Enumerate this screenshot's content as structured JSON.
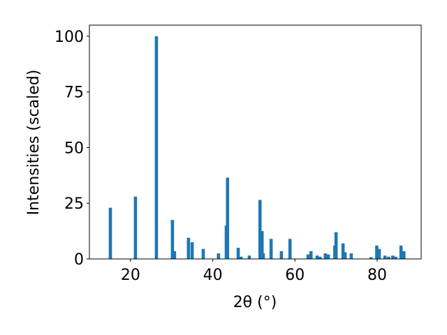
{
  "chart_data": {
    "type": "bar",
    "xlabel": "2θ (°)",
    "ylabel": "Intensities (scaled)",
    "color": "#1f77b4",
    "x": [
      15.1,
      21.2,
      26.3,
      30.2,
      30.7,
      34.1,
      35.0,
      37.7,
      41.4,
      43.3,
      43.6,
      46.2,
      46.9,
      48.9,
      51.5,
      52.0,
      52.3,
      54.2,
      56.7,
      58.8,
      63.2,
      63.9,
      65.4,
      66.1,
      67.4,
      68.1,
      69.7,
      70.0,
      71.7,
      72.2,
      73.7,
      78.5,
      79.9,
      80.5,
      81.9,
      82.8,
      83.8,
      84.5,
      85.8,
      86.5
    ],
    "values": [
      23,
      28,
      100,
      17.5,
      3.5,
      9.5,
      7.5,
      4.5,
      2.5,
      15,
      36.5,
      5,
      1,
      1.5,
      26.5,
      12.5,
      2.5,
      9,
      3.5,
      9,
      2,
      3.5,
      1.5,
      1,
      2.5,
      2,
      6,
      12,
      7,
      3,
      2.5,
      0.8,
      6,
      4.5,
      1.5,
      1,
      1.5,
      1,
      6,
      3.5
    ],
    "xlim": [
      10,
      90.7
    ],
    "xticks": [
      20,
      40,
      60,
      80
    ],
    "ylim": [
      0,
      105
    ],
    "yticks": [
      0,
      25,
      50,
      75,
      100
    ]
  }
}
